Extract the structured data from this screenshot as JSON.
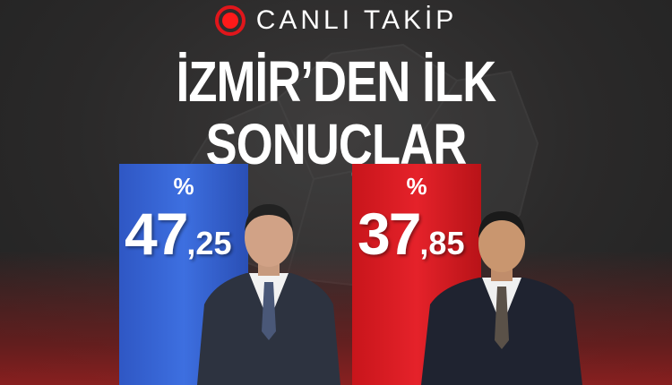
{
  "live_label": "CANLI TAKİP",
  "live_icon": "record-dot-icon",
  "headline": "İZMİR’DEN İLK SONUÇLAR",
  "candidates": [
    {
      "percent_symbol": "%",
      "value_int": "47",
      "value_dec": ",25",
      "color": "#3462d1"
    },
    {
      "percent_symbol": "%",
      "value_int": "37",
      "value_dec": ",85",
      "color": "#d91c22"
    }
  ]
}
